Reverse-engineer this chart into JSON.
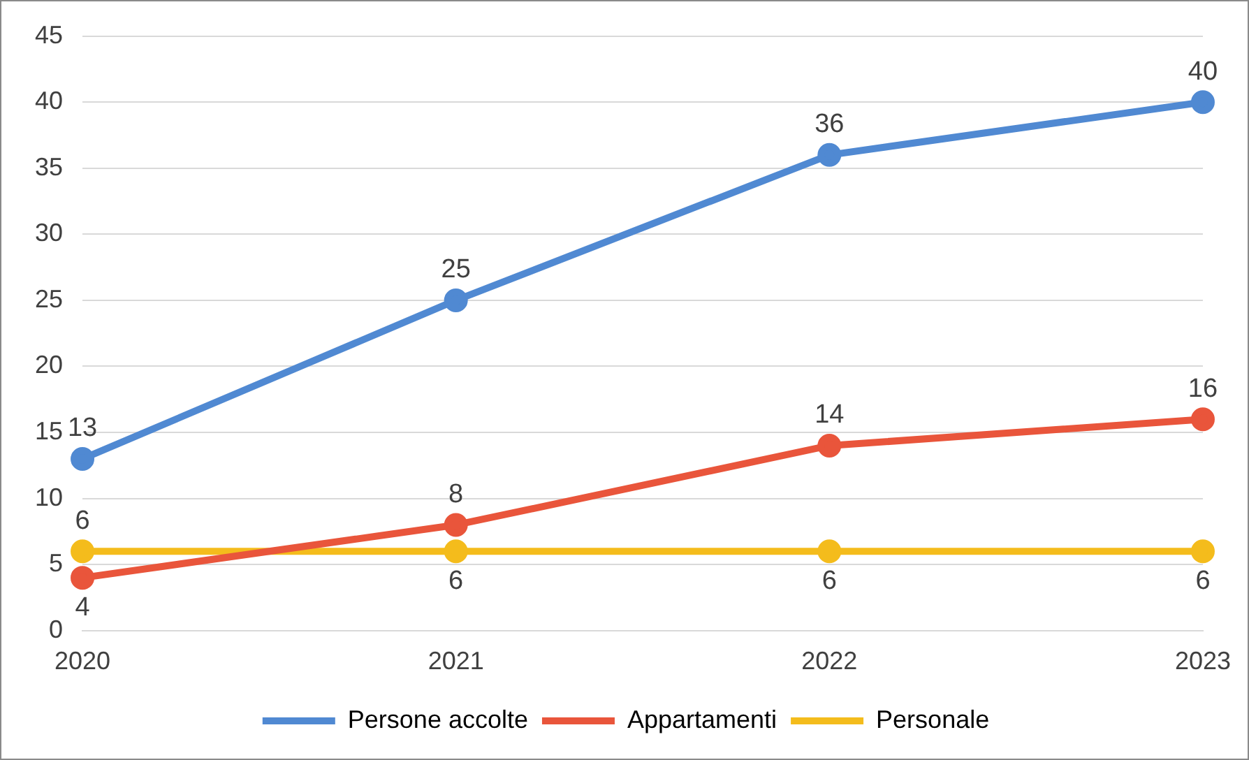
{
  "chart_data": {
    "type": "line",
    "categories": [
      "2020",
      "2021",
      "2022",
      "2023"
    ],
    "series": [
      {
        "name": "Persone accolte",
        "color": "#5089d2",
        "values": [
          13,
          25,
          36,
          40
        ]
      },
      {
        "name": "Appartamenti",
        "color": "#e9553b",
        "values": [
          4,
          8,
          14,
          16
        ]
      },
      {
        "name": "Personale",
        "color": "#f4bc1c",
        "values": [
          6,
          6,
          6,
          6
        ]
      }
    ],
    "ylim": [
      0,
      45
    ],
    "yticks": [
      0,
      5,
      10,
      15,
      20,
      25,
      30,
      35,
      40,
      45
    ],
    "grid": "y",
    "legend": "bottom",
    "marker": "circle",
    "line_style": "solid",
    "data_labels": true
  }
}
